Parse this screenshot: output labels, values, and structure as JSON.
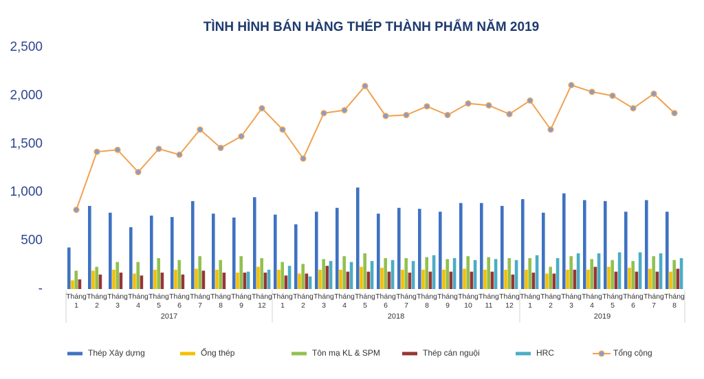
{
  "chart_data": {
    "type": "bar",
    "title": "TÌNH HÌNH BÁN HÀNG THÉP THÀNH PHẨM NĂM 2019",
    "groups": [
      {
        "label": "2017",
        "categories": [
          "Tháng 1",
          "Tháng 2",
          "Tháng 3",
          "Tháng 4",
          "Tháng 5",
          "Tháng 6",
          "Tháng 7",
          "Tháng 8",
          "Tháng 9",
          "Tháng 12"
        ]
      },
      {
        "label": "2018",
        "categories": [
          "Tháng 1",
          "Tháng 2",
          "Tháng 3",
          "Tháng 4",
          "Tháng 5",
          "Tháng 6",
          "Tháng 7",
          "Tháng 8",
          "Tháng 9",
          "Tháng 10",
          "Tháng 11",
          "Tháng 12"
        ]
      },
      {
        "label": "2019",
        "categories": [
          "Tháng 1",
          "Tháng 2",
          "Tháng 3",
          "Tháng 4",
          "Tháng 5",
          "Tháng 6",
          "Tháng 7",
          "Tháng 8"
        ]
      }
    ],
    "series": [
      {
        "name": "Thép Xây dựng",
        "color": "#3f72c1",
        "values": [
          430,
          860,
          790,
          640,
          760,
          745,
          910,
          780,
          740,
          950,
          770,
          670,
          800,
          840,
          1050,
          780,
          840,
          830,
          800,
          890,
          890,
          860,
          930,
          790,
          990,
          920,
          910,
          800,
          920,
          800
        ]
      },
      {
        "name": "Ống thép",
        "color": "#f5c000",
        "values": [
          90,
          190,
          200,
          160,
          200,
          200,
          210,
          200,
          170,
          230,
          200,
          160,
          200,
          200,
          230,
          220,
          200,
          200,
          200,
          210,
          200,
          200,
          200,
          160,
          200,
          200,
          230,
          220,
          210,
          180
        ]
      },
      {
        "name": "Tôn mạ KL & SPM",
        "color": "#92c050",
        "values": [
          190,
          230,
          280,
          280,
          320,
          300,
          340,
          300,
          340,
          320,
          280,
          260,
          310,
          340,
          370,
          320,
          320,
          330,
          310,
          340,
          330,
          320,
          320,
          230,
          340,
          310,
          300,
          290,
          340,
          300
        ]
      },
      {
        "name": "Thép cán nguội",
        "color": "#963634",
        "values": [
          100,
          150,
          170,
          140,
          170,
          150,
          190,
          170,
          170,
          170,
          140,
          160,
          240,
          180,
          180,
          180,
          170,
          180,
          180,
          180,
          180,
          150,
          170,
          160,
          200,
          230,
          180,
          180,
          180,
          210
        ]
      },
      {
        "name": "HRC",
        "color": "#4bacc6",
        "values": [
          null,
          null,
          null,
          null,
          null,
          null,
          null,
          null,
          180,
          200,
          240,
          130,
          290,
          280,
          290,
          300,
          290,
          350,
          320,
          300,
          310,
          300,
          350,
          320,
          370,
          370,
          380,
          380,
          370,
          320
        ]
      },
      {
        "name": "Tổng cộng",
        "type": "line",
        "color": "#f0a050",
        "marker_color": "#7f9fd2",
        "values": [
          820,
          1420,
          1440,
          1210,
          1450,
          1390,
          1650,
          1460,
          1580,
          1870,
          1650,
          1350,
          1820,
          1850,
          2100,
          1790,
          1800,
          1890,
          1800,
          1920,
          1900,
          1810,
          1950,
          1650,
          2110,
          2040,
          2000,
          1870,
          2020,
          1820
        ]
      }
    ],
    "ylim": [
      0,
      2500
    ],
    "yticks": [
      {
        "value": 0,
        "label": "-"
      },
      500,
      {
        "value": 1000,
        "label": "1,000"
      },
      {
        "value": 1500,
        "label": "1,500"
      },
      {
        "value": 2000,
        "label": "2,000"
      },
      {
        "value": 2500,
        "label": "2,500"
      }
    ],
    "grid": false
  }
}
